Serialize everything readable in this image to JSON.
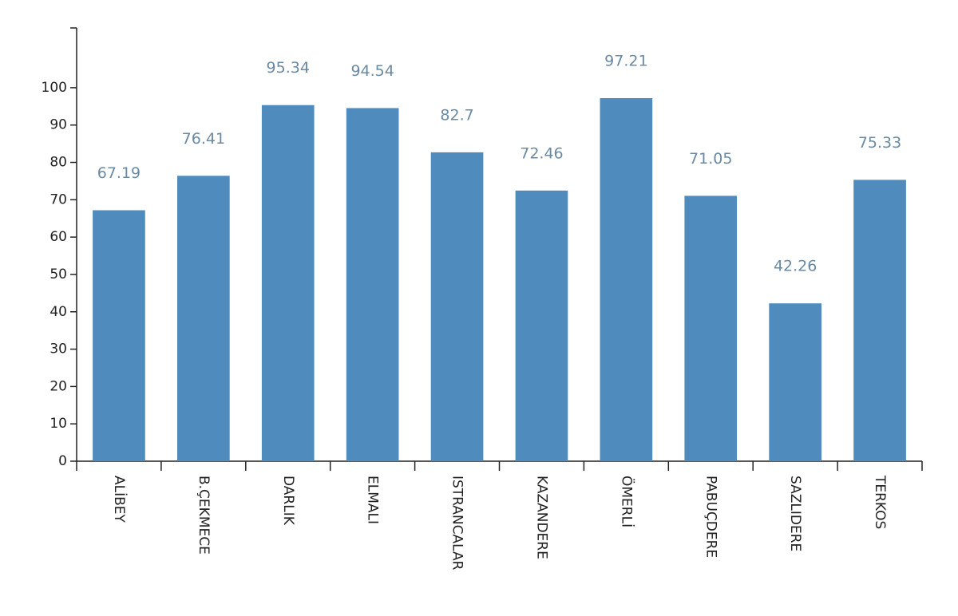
{
  "chart_data": {
    "type": "bar",
    "categories": [
      "ALİBEY",
      "B.ÇEKMECE",
      "DARLIK",
      "ELMALI",
      "ISTRANCALAR",
      "KAZANDERE",
      "ÖMERLİ",
      "PABUÇDERE",
      "SAZLIDERE",
      "TERKOS"
    ],
    "values": [
      67.19,
      76.41,
      95.34,
      94.54,
      82.7,
      72.46,
      97.21,
      71.05,
      42.26,
      75.33
    ],
    "color": "#4f8bbd",
    "ylim": [
      0,
      116
    ],
    "yticks": [
      0,
      10,
      20,
      30,
      40,
      50,
      60,
      70,
      80,
      90,
      100
    ],
    "grid": false
  }
}
